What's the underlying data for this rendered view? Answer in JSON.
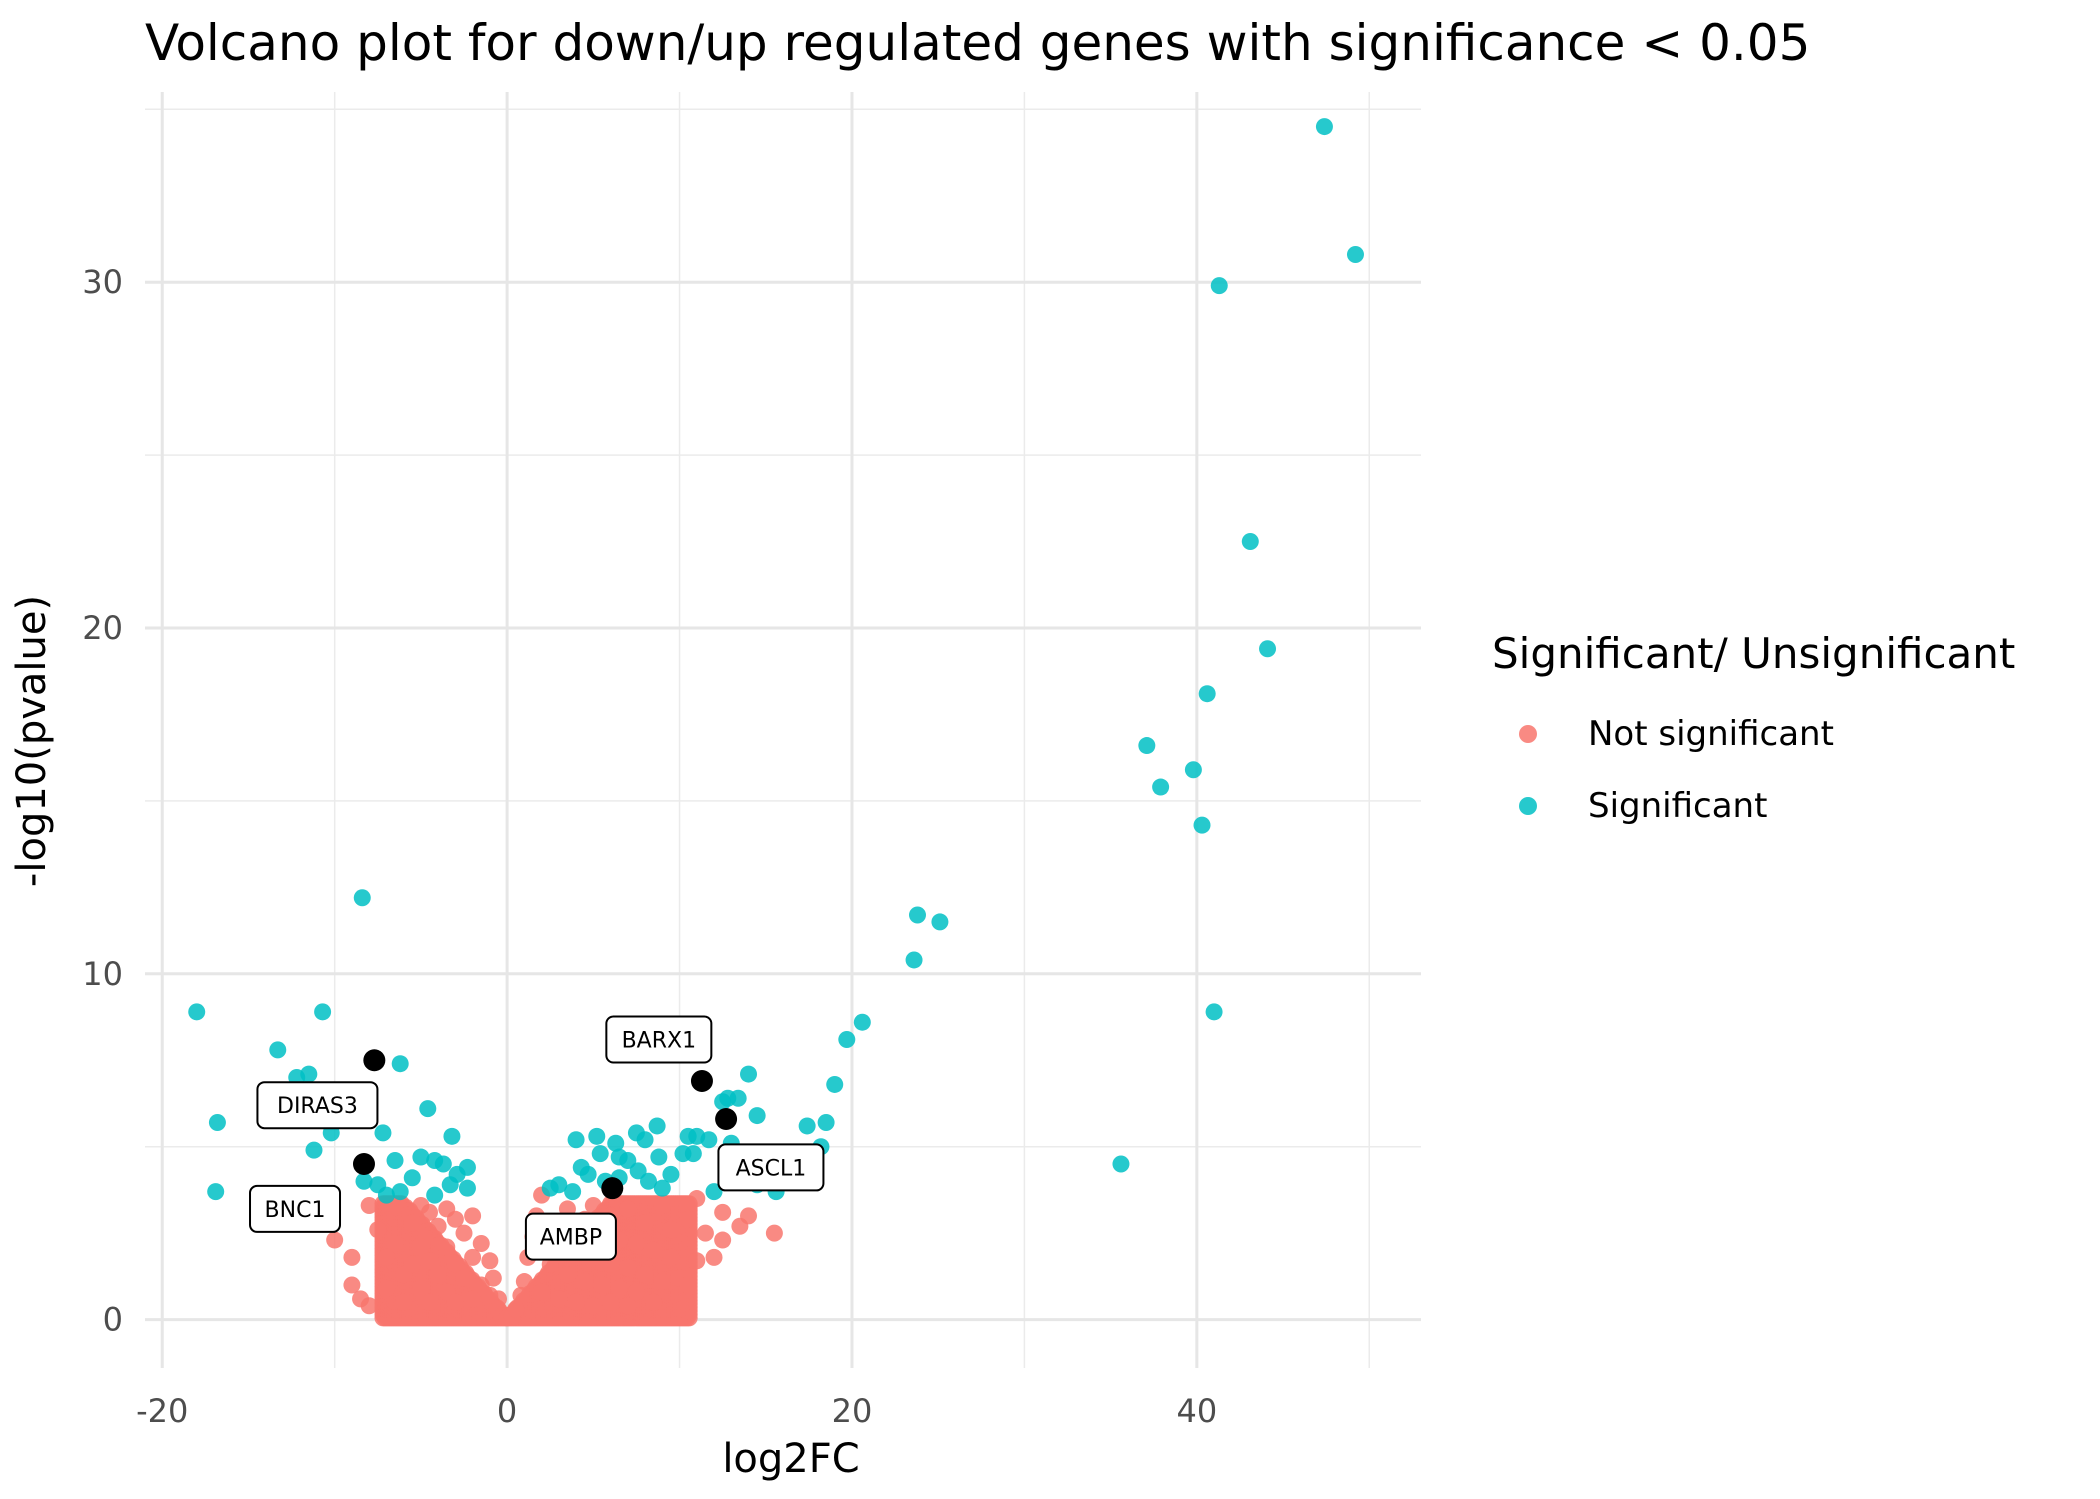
{
  "chart_data": {
    "type": "scatter",
    "title": "Volcano plot for down/up regulated genes with significance < 0.05",
    "xlabel": "log2FC",
    "ylabel": "-log10(pvalue)",
    "xlim": [
      -21,
      53
    ],
    "ylim": [
      -1.4,
      35.5
    ],
    "x_ticks": [
      -20,
      0,
      20,
      40
    ],
    "x_tick_labels": [
      "-20",
      "0",
      "20",
      "40"
    ],
    "x_minor": [
      -10,
      10,
      30,
      50
    ],
    "y_ticks": [
      0,
      10,
      20,
      30
    ],
    "y_tick_labels": [
      "0",
      "10",
      "20",
      "30"
    ],
    "y_minor": [
      5,
      15,
      25,
      35
    ],
    "grid": true,
    "legend": {
      "title": "Significant/ Unsignificant",
      "position": "right",
      "entries": [
        {
          "label": "Not significant",
          "color": "#F8766D"
        },
        {
          "label": "Significant",
          "color": "#00BFC4"
        }
      ]
    },
    "series": [
      {
        "name": "Not significant",
        "color": "#F8766D",
        "points": [
          [
            -13.5,
            3.0
          ],
          [
            -11.5,
            3.5
          ],
          [
            -10,
            2.3
          ],
          [
            -9,
            1.8
          ],
          [
            -9,
            1.0
          ],
          [
            -8.5,
            0.6
          ],
          [
            -8,
            0.4
          ],
          [
            -8,
            3.3
          ],
          [
            -7.5,
            2.6
          ],
          [
            -7,
            1.8
          ],
          [
            -7,
            0.9
          ],
          [
            -6.5,
            3.3
          ],
          [
            -6.5,
            2.2
          ],
          [
            -6,
            1.3
          ],
          [
            -6,
            0.5
          ],
          [
            -5.5,
            2.8
          ],
          [
            -5.5,
            1.6
          ],
          [
            -5,
            3.3
          ],
          [
            -5,
            2.1
          ],
          [
            -5,
            0.9
          ],
          [
            -4.5,
            3.1
          ],
          [
            -4.5,
            1.7
          ],
          [
            -4.5,
            0.5
          ],
          [
            -4,
            2.7
          ],
          [
            -4,
            1.3
          ],
          [
            -3.5,
            3.2
          ],
          [
            -3.5,
            2.1
          ],
          [
            -3.5,
            0.8
          ],
          [
            -3,
            2.9
          ],
          [
            -3,
            1.6
          ],
          [
            -3,
            0.5
          ],
          [
            -2.5,
            2.5
          ],
          [
            -2.5,
            1.2
          ],
          [
            -2,
            3.0
          ],
          [
            -2,
            1.8
          ],
          [
            -2,
            0.6
          ],
          [
            -1.5,
            2.2
          ],
          [
            -1.5,
            1.0
          ],
          [
            -1,
            1.7
          ],
          [
            -1,
            0.7
          ],
          [
            -0.8,
            1.2
          ],
          [
            -0.5,
            0.6
          ],
          [
            -0.5,
            0.3
          ],
          [
            -0.3,
            0.1
          ],
          [
            0,
            0.05
          ],
          [
            0.3,
            0.1
          ],
          [
            0.5,
            0.3
          ],
          [
            0.8,
            0.7
          ],
          [
            1,
            1.1
          ],
          [
            1.2,
            1.8
          ],
          [
            1.5,
            2.4
          ],
          [
            1.7,
            3.0
          ],
          [
            2,
            3.6
          ],
          [
            2,
            0.8
          ],
          [
            2.5,
            1.6
          ],
          [
            2.5,
            2.8
          ],
          [
            3,
            0.6
          ],
          [
            3,
            2.2
          ],
          [
            3.5,
            1.3
          ],
          [
            3.5,
            3.2
          ],
          [
            4,
            0.5
          ],
          [
            4,
            2.0
          ],
          [
            4.5,
            1.1
          ],
          [
            4.5,
            2.9
          ],
          [
            5,
            0.4
          ],
          [
            5,
            1.8
          ],
          [
            5,
            3.3
          ],
          [
            5.5,
            1.0
          ],
          [
            5.5,
            2.5
          ],
          [
            6,
            0.5
          ],
          [
            6,
            1.6
          ],
          [
            6,
            3.0
          ],
          [
            6.5,
            0.9
          ],
          [
            6.5,
            2.3
          ],
          [
            7,
            0.4
          ],
          [
            7,
            1.5
          ],
          [
            7,
            3.2
          ],
          [
            7.5,
            0.8
          ],
          [
            7.5,
            2.2
          ],
          [
            8,
            1.3
          ],
          [
            8,
            2.8
          ],
          [
            8.5,
            0.5
          ],
          [
            8.5,
            2.0
          ],
          [
            9,
            1.1
          ],
          [
            9,
            3.3
          ],
          [
            9.5,
            1.8
          ],
          [
            9.5,
            2.6
          ],
          [
            10,
            1.2
          ],
          [
            10.5,
            2.9
          ],
          [
            11,
            1.7
          ],
          [
            11,
            3.5
          ],
          [
            11.5,
            2.5
          ],
          [
            12,
            1.8
          ],
          [
            12.5,
            2.3
          ],
          [
            12.5,
            3.1
          ],
          [
            13.5,
            2.7
          ],
          [
            14,
            3.0
          ],
          [
            15.5,
            2.5
          ],
          [
            8.5,
            0.5
          ],
          [
            10.5,
            1.0
          ]
        ]
      },
      {
        "name": "Significant",
        "color": "#00BFC4",
        "points": [
          [
            -18,
            8.9
          ],
          [
            -16.8,
            5.7
          ],
          [
            -16.9,
            3.7
          ],
          [
            -13.3,
            7.8
          ],
          [
            -12.2,
            7.0
          ],
          [
            -11.5,
            7.1
          ],
          [
            -11.2,
            4.9
          ],
          [
            -10.7,
            8.9
          ],
          [
            -10.2,
            5.4
          ],
          [
            -9.6,
            5.9
          ],
          [
            -8.4,
            12.2
          ],
          [
            -7.5,
            3.9
          ],
          [
            -7.2,
            5.4
          ],
          [
            -6.5,
            4.6
          ],
          [
            -6.2,
            7.4
          ],
          [
            -6.2,
            3.7
          ],
          [
            -5.5,
            4.1
          ],
          [
            -5,
            4.7
          ],
          [
            -4.6,
            6.1
          ],
          [
            -4.2,
            4.6
          ],
          [
            -4.2,
            3.6
          ],
          [
            -3.7,
            4.5
          ],
          [
            -3.3,
            3.9
          ],
          [
            -3.2,
            5.3
          ],
          [
            -2.9,
            4.2
          ],
          [
            -2.3,
            3.8
          ],
          [
            -2.3,
            4.4
          ],
          [
            -7,
            3.6
          ],
          [
            -8.3,
            4.0
          ],
          [
            2.5,
            3.8
          ],
          [
            3,
            3.9
          ],
          [
            3.8,
            3.7
          ],
          [
            4,
            5.2
          ],
          [
            4.3,
            4.4
          ],
          [
            4.7,
            4.2
          ],
          [
            5.4,
            4.8
          ],
          [
            5.2,
            5.3
          ],
          [
            5.7,
            4.0
          ],
          [
            6.3,
            5.1
          ],
          [
            6.5,
            4.7
          ],
          [
            6.5,
            4.1
          ],
          [
            7,
            4.6
          ],
          [
            7.5,
            5.4
          ],
          [
            7.6,
            4.3
          ],
          [
            8,
            5.2
          ],
          [
            8.2,
            4.0
          ],
          [
            8.7,
            5.6
          ],
          [
            8.8,
            4.7
          ],
          [
            9,
            3.8
          ],
          [
            9.5,
            4.2
          ],
          [
            10.2,
            4.8
          ],
          [
            10.5,
            5.3
          ],
          [
            10.8,
            4.8
          ],
          [
            11,
            5.3
          ],
          [
            11.7,
            5.2
          ],
          [
            12,
            3.7
          ],
          [
            12.5,
            6.3
          ],
          [
            12.8,
            6.4
          ],
          [
            13.4,
            6.4
          ],
          [
            13.6,
            4.6
          ],
          [
            13,
            5.1
          ],
          [
            14,
            7.1
          ],
          [
            14.5,
            5.9
          ],
          [
            14.5,
            3.9
          ],
          [
            15.6,
            3.7
          ],
          [
            17.4,
            5.6
          ],
          [
            18.2,
            5.0
          ],
          [
            18.5,
            5.7
          ],
          [
            19,
            6.8
          ],
          [
            19.7,
            8.1
          ],
          [
            20.6,
            8.6
          ],
          [
            23.6,
            10.4
          ],
          [
            23.8,
            11.7
          ],
          [
            25.1,
            11.5
          ],
          [
            35.6,
            4.5
          ],
          [
            37.1,
            16.6
          ],
          [
            37.9,
            15.4
          ],
          [
            39.8,
            15.9
          ],
          [
            40.3,
            14.3
          ],
          [
            40.6,
            18.1
          ],
          [
            41,
            8.9
          ],
          [
            41.3,
            29.9
          ],
          [
            43.1,
            22.5
          ],
          [
            44.1,
            19.4
          ],
          [
            47.4,
            34.5
          ],
          [
            49.2,
            30.8
          ]
        ]
      }
    ],
    "highlighted": {
      "color": "#000000",
      "points": [
        {
          "x": -7.7,
          "y": 7.5
        },
        {
          "x": -8.3,
          "y": 4.5
        },
        {
          "x": 11.3,
          "y": 6.9
        },
        {
          "x": 12.7,
          "y": 5.8
        },
        {
          "x": 6.1,
          "y": 3.8
        }
      ]
    },
    "annotations": [
      {
        "text": "DIRAS3",
        "x": -11,
        "y": 6.2
      },
      {
        "text": "BNC1",
        "x": -12.3,
        "y": 3.2
      },
      {
        "text": "BARX1",
        "x": 8.8,
        "y": 8.1
      },
      {
        "text": "ASCL1",
        "x": 15.3,
        "y": 4.4
      },
      {
        "text": "AMBP",
        "x": 3.7,
        "y": 2.4
      }
    ]
  }
}
